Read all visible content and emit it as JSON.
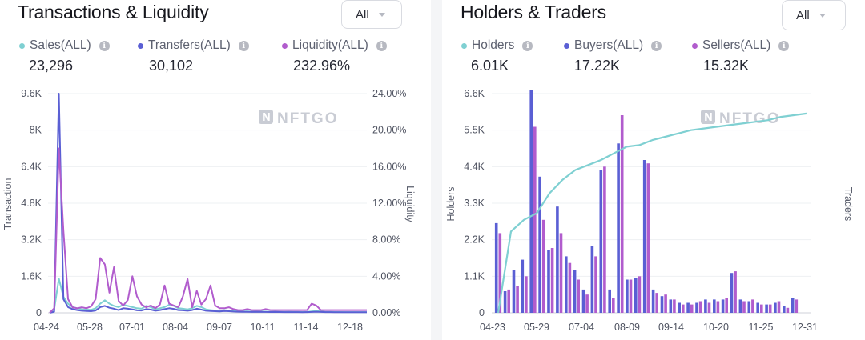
{
  "transactions": {
    "title": "Transactions & Liquidity",
    "filter": "All",
    "metrics": [
      {
        "label": "Sales(ALL)",
        "value": "23,296",
        "color": "#7fd0d2"
      },
      {
        "label": "Transfers(ALL)",
        "value": "30,102",
        "color": "#5a5fd4"
      },
      {
        "label": "Liquidity(ALL)",
        "value": "232.96%",
        "color": "#b15ccd"
      }
    ],
    "watermark": "NFTGO"
  },
  "holders": {
    "title": "Holders & Traders",
    "filter": "All",
    "metrics": [
      {
        "label": "Holders",
        "value": "6.01K",
        "color": "#7fd0d2"
      },
      {
        "label": "Buyers(ALL)",
        "value": "17.22K",
        "color": "#5a5fd4"
      },
      {
        "label": "Sellers(ALL)",
        "value": "15.32K",
        "color": "#b15ccd"
      }
    ],
    "watermark": "NFTGO"
  },
  "chart_data": [
    {
      "type": "line",
      "title": "Transactions & Liquidity",
      "ylabel": "Transaction",
      "y2label": "Liquidity",
      "ylim": [
        0,
        9600
      ],
      "y2lim": [
        0,
        24
      ],
      "yticks": [
        "0",
        "1.6K",
        "3.2K",
        "4.8K",
        "6.4K",
        "8K",
        "9.6K"
      ],
      "y2ticks": [
        "0.00%",
        "4.00%",
        "8.00%",
        "12.00%",
        "16.00%",
        "20.00%",
        "24.00%"
      ],
      "xticks": [
        "04-24",
        "05-28",
        "07-01",
        "08-04",
        "09-07",
        "10-11",
        "11-14",
        "12-18"
      ],
      "n": 70,
      "series": [
        {
          "name": "Sales(ALL)",
          "axis": "left",
          "color": "#7fd0d2",
          "values": [
            0,
            150,
            1500,
            700,
            400,
            250,
            200,
            150,
            140,
            130,
            200,
            400,
            550,
            400,
            300,
            250,
            350,
            300,
            250,
            200,
            180,
            300,
            250,
            150,
            200,
            250,
            350,
            300,
            200,
            180,
            150,
            200,
            300,
            250,
            150,
            120,
            100,
            90,
            120,
            100,
            80,
            70,
            60,
            60,
            50,
            60,
            55,
            50,
            45,
            50,
            45,
            40,
            45,
            40,
            40,
            35,
            40,
            60,
            80,
            60,
            40,
            40,
            35,
            35,
            30,
            30,
            30,
            30,
            30,
            30
          ]
        },
        {
          "name": "Transfers(ALL)",
          "axis": "left",
          "color": "#5a5fd4",
          "values": [
            0,
            50,
            9600,
            600,
            250,
            160,
            120,
            90,
            80,
            70,
            100,
            250,
            300,
            220,
            180,
            120,
            200,
            180,
            150,
            110,
            100,
            160,
            140,
            90,
            120,
            160,
            200,
            170,
            120,
            110,
            90,
            120,
            180,
            140,
            90,
            80,
            70,
            60,
            80,
            70,
            55,
            50,
            45,
            45,
            40,
            45,
            40,
            38,
            35,
            38,
            35,
            30,
            32,
            30,
            30,
            28,
            30,
            40,
            50,
            40,
            30,
            30,
            28,
            28,
            26,
            26,
            25,
            25,
            25,
            25
          ]
        },
        {
          "name": "Liquidity(ALL)",
          "axis": "right",
          "color": "#b15ccd",
          "values": [
            0,
            0.5,
            18,
            9,
            1.5,
            0.6,
            0.5,
            0.6,
            0.5,
            0.7,
            1.5,
            6,
            5.3,
            2.2,
            5,
            1.3,
            0.8,
            1.4,
            4,
            1.8,
            0.9,
            0.6,
            0.8,
            0.5,
            0.9,
            3,
            1,
            0.8,
            0.6,
            1.8,
            3.7,
            0.6,
            2.4,
            0.9,
            1.5,
            3,
            0.8,
            0.5,
            0.5,
            0.6,
            0.4,
            0.3,
            0.3,
            0.4,
            0.3,
            0.3,
            0.3,
            0.4,
            0.3,
            0.3,
            0.3,
            0.3,
            0.3,
            0.3,
            0.3,
            0.3,
            0.3,
            1,
            0.8,
            0.3,
            0.3,
            0.3,
            0.3,
            0.3,
            0.3,
            0.3,
            0.3,
            0.3,
            0.3,
            0.3
          ]
        }
      ]
    },
    {
      "type": "bar",
      "title": "Holders & Traders",
      "ylabel": "Holders",
      "y2label": "Traders",
      "ylim": [
        0,
        6600
      ],
      "yticks": [
        "0",
        "1.1K",
        "2.2K",
        "3.3K",
        "4.4K",
        "5.5K",
        "6.6K"
      ],
      "xticks": [
        "04-23",
        "05-29",
        "07-04",
        "08-09",
        "09-14",
        "10-20",
        "11-25",
        "12-31"
      ],
      "series": [
        {
          "name": "Buyers(ALL)",
          "color": "#5a5fd4",
          "values": [
            2700,
            650,
            1300,
            1600,
            6700,
            4100,
            1900,
            3200,
            1700,
            1300,
            700,
            2000,
            4300,
            700,
            5100,
            1000,
            1050,
            4600,
            700,
            500,
            400,
            300,
            300,
            300,
            400,
            400,
            400,
            1200,
            400,
            350,
            300,
            250,
            300,
            200,
            450
          ]
        },
        {
          "name": "Sellers(ALL)",
          "color": "#b15ccd",
          "values": [
            2400,
            700,
            800,
            1100,
            5600,
            2800,
            1950,
            2400,
            1500,
            1000,
            550,
            1700,
            4400,
            450,
            5950,
            1000,
            1100,
            4500,
            600,
            550,
            400,
            250,
            250,
            350,
            300,
            350,
            450,
            1250,
            350,
            400,
            250,
            250,
            350,
            150,
            400
          ]
        },
        {
          "name": "Holders",
          "type": "line",
          "color": "#7fd0d2",
          "values": [
            0,
            2450,
            2800,
            3000,
            3600,
            4000,
            4300,
            4450,
            4600,
            4800,
            5000,
            5050,
            5200,
            5300,
            5400,
            5500,
            5550,
            5600,
            5650,
            5700,
            5750,
            5800,
            5900,
            5950,
            6000
          ]
        }
      ]
    }
  ]
}
